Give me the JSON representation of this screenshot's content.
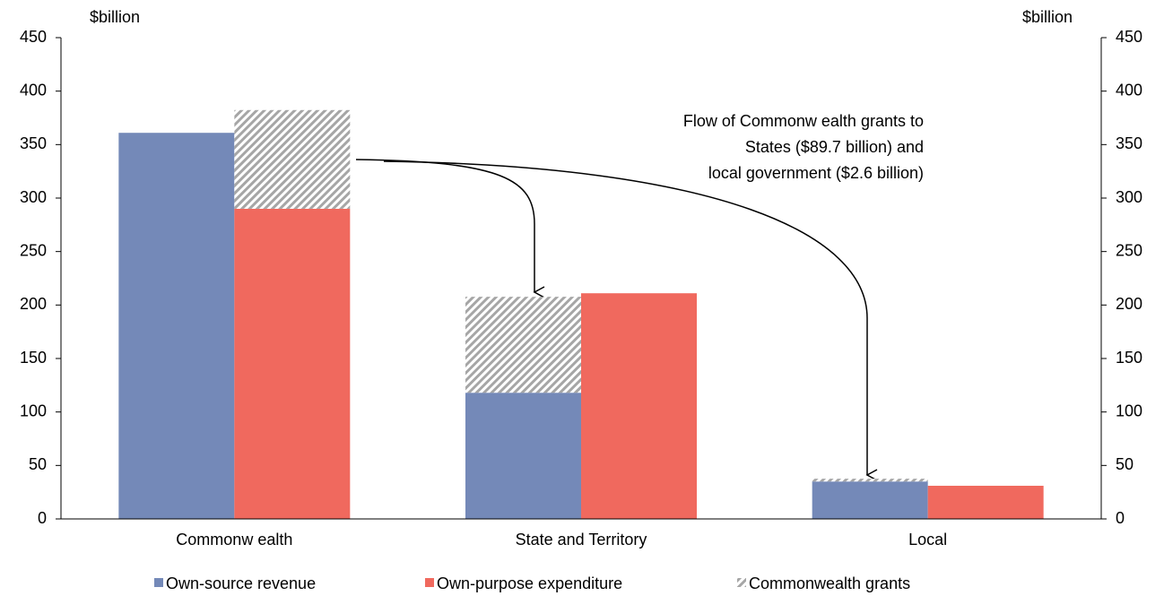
{
  "chart_data": {
    "type": "bar",
    "ylabel": "$billion",
    "y2label": "$billion",
    "categories": [
      "Commonw ealth",
      "State and Territory",
      "Local"
    ],
    "series": [
      {
        "name": "Own-source revenue",
        "color": "#7489b8",
        "values": [
          361,
          118,
          35
        ]
      },
      {
        "name": "Own-purpose expenditure",
        "color": "#f0695e",
        "values": [
          290,
          211,
          31
        ]
      },
      {
        "name": "Commonwealth grants",
        "color": "#a6a6a6",
        "pattern": "hatch",
        "values": [
          92.3,
          89.7,
          2.6
        ],
        "stack_on": [
          "Own-purpose expenditure",
          "Own-source revenue",
          "Own-source revenue"
        ]
      }
    ],
    "annotation": [
      "Flow of Commonw ealth grants to",
      "States ($89.7 billion)  and",
      "local government ($2.6 billion)"
    ],
    "ylim": [
      0,
      450
    ],
    "yticks": [
      0,
      50,
      100,
      150,
      200,
      250,
      300,
      350,
      400,
      450
    ],
    "y2lim": [
      0,
      450
    ],
    "y2ticks": [
      0,
      50,
      100,
      150,
      200,
      250,
      300,
      350,
      400,
      450
    ],
    "legend": "bottom"
  }
}
